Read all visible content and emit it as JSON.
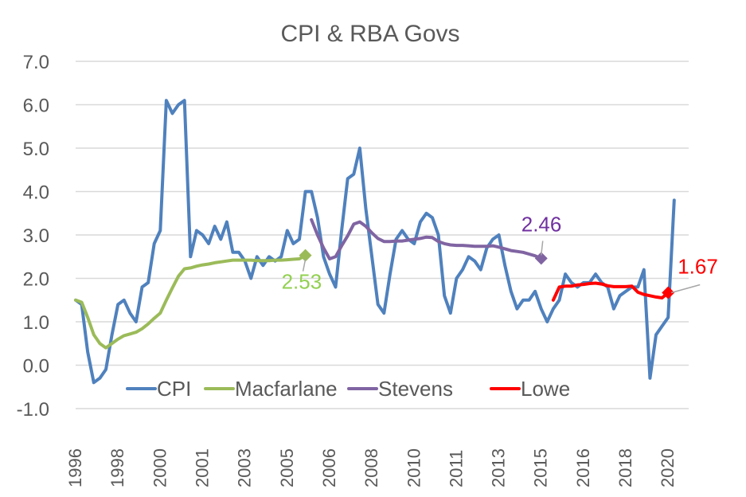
{
  "chart_data": {
    "type": "line",
    "title": "CPI & RBA Govs",
    "xlabel": "",
    "ylabel": "",
    "ylim": [
      -1.0,
      7.0
    ],
    "yticks": [
      "7.0",
      "6.0",
      "5.0",
      "4.0",
      "3.0",
      "2.0",
      "1.0",
      "0.0",
      "-1.0"
    ],
    "ytick_values": [
      7,
      6,
      5,
      4,
      3,
      2,
      1,
      0,
      -1
    ],
    "grid": true,
    "legend_position": "bottom-inside",
    "x_count": 102,
    "x_ticks": [
      {
        "index": 0,
        "label": "1996"
      },
      {
        "index": 7,
        "label": "1998"
      },
      {
        "index": 14,
        "label": "2000"
      },
      {
        "index": 21,
        "label": "2001"
      },
      {
        "index": 28,
        "label": "2003"
      },
      {
        "index": 35,
        "label": "2005"
      },
      {
        "index": 42,
        "label": "2006"
      },
      {
        "index": 49,
        "label": "2008"
      },
      {
        "index": 56,
        "label": "2010"
      },
      {
        "index": 63,
        "label": "2011"
      },
      {
        "index": 70,
        "label": "2013"
      },
      {
        "index": 77,
        "label": "2015"
      },
      {
        "index": 84,
        "label": "2016"
      },
      {
        "index": 91,
        "label": "2018"
      },
      {
        "index": 98,
        "label": "2020"
      }
    ],
    "series": [
      {
        "name": "CPI",
        "color": "#4f81bd",
        "start_index": 0,
        "values": [
          1.5,
          1.4,
          0.3,
          -0.4,
          -0.3,
          -0.1,
          0.7,
          1.4,
          1.5,
          1.2,
          1.0,
          1.8,
          1.9,
          2.8,
          3.1,
          6.1,
          5.8,
          6.0,
          6.1,
          2.5,
          3.1,
          3.0,
          2.8,
          3.2,
          2.9,
          3.3,
          2.6,
          2.6,
          2.4,
          2.0,
          2.5,
          2.3,
          2.5,
          2.4,
          2.5,
          3.1,
          2.8,
          2.9,
          4.0,
          4.0,
          3.4,
          2.5,
          2.1,
          1.8,
          3.1,
          4.3,
          4.4,
          5.0,
          3.6,
          2.5,
          1.4,
          1.2,
          2.1,
          2.9,
          3.1,
          2.9,
          2.8,
          3.3,
          3.5,
          3.4,
          3.0,
          1.6,
          1.2,
          2.0,
          2.2,
          2.5,
          2.4,
          2.2,
          2.7,
          2.9,
          3.0,
          2.3,
          1.7,
          1.3,
          1.5,
          1.5,
          1.7,
          1.3,
          1.0,
          1.3,
          1.5,
          2.1,
          1.9,
          1.8,
          1.9,
          1.9,
          2.1,
          1.9,
          1.8,
          1.3,
          1.6,
          1.7,
          1.8,
          1.8,
          2.2,
          -0.3,
          0.7,
          0.9,
          1.1,
          3.8
        ]
      },
      {
        "name": "Macfarlane",
        "color": "#9bbb59",
        "start_index": 0,
        "values": [
          1.5,
          1.45,
          1.1,
          0.7,
          0.5,
          0.4,
          0.5,
          0.6,
          0.68,
          0.72,
          0.76,
          0.84,
          0.95,
          1.08,
          1.2,
          1.5,
          1.78,
          2.05,
          2.22,
          2.24,
          2.28,
          2.31,
          2.33,
          2.36,
          2.38,
          2.4,
          2.42,
          2.42,
          2.42,
          2.42,
          2.41,
          2.41,
          2.41,
          2.42,
          2.42,
          2.43,
          2.44,
          2.45,
          2.53
        ],
        "end_marker": true,
        "end_label": "2.53"
      },
      {
        "name": "Stevens",
        "color": "#8064a2",
        "start_index": 39,
        "values": [
          3.35,
          3.0,
          2.7,
          2.45,
          2.5,
          2.75,
          2.98,
          3.25,
          3.3,
          3.2,
          3.05,
          2.92,
          2.85,
          2.85,
          2.86,
          2.86,
          2.88,
          2.9,
          2.92,
          2.95,
          2.94,
          2.85,
          2.8,
          2.77,
          2.76,
          2.76,
          2.75,
          2.74,
          2.74,
          2.74,
          2.75,
          2.72,
          2.68,
          2.64,
          2.62,
          2.6,
          2.56,
          2.52,
          2.46
        ],
        "end_marker": true,
        "end_label": "2.46"
      },
      {
        "name": "Lowe",
        "color": "#ff0000",
        "start_index": 79,
        "values": [
          1.5,
          1.8,
          1.82,
          1.82,
          1.85,
          1.86,
          1.88,
          1.89,
          1.87,
          1.83,
          1.81,
          1.81,
          1.81,
          1.82,
          1.68,
          1.63,
          1.6,
          1.57,
          1.55,
          1.67
        ],
        "end_marker": true,
        "end_label": "1.67"
      }
    ]
  }
}
